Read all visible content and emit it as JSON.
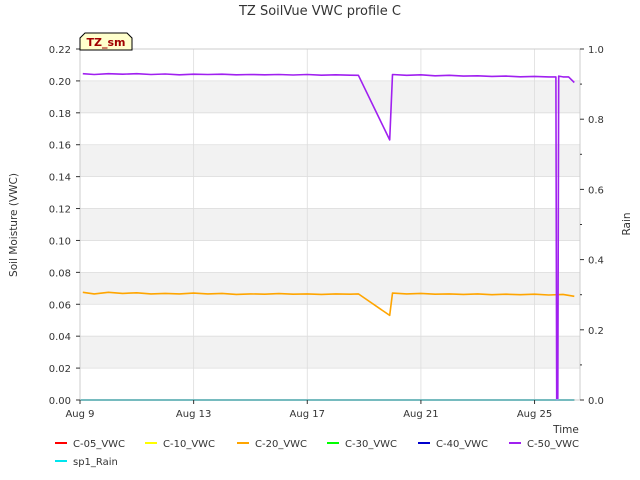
{
  "chart_data": {
    "type": "line",
    "title": "TZ SoilVue VWC profile C",
    "badge": "TZ_sm",
    "xlabel": "Time",
    "ylabel": "Soil Moisture (VWC)",
    "y2label": "Rain",
    "xlim": [
      9,
      26.6
    ],
    "ylim": [
      0.0,
      0.22
    ],
    "y2lim": [
      0.0,
      1.0
    ],
    "x_ticks": [
      {
        "v": 9,
        "label": "Aug 9"
      },
      {
        "v": 13,
        "label": "Aug 13"
      },
      {
        "v": 17,
        "label": "Aug 17"
      },
      {
        "v": 21,
        "label": "Aug 21"
      },
      {
        "v": 25,
        "label": "Aug 25"
      }
    ],
    "y_ticks": [
      {
        "v": 0.0,
        "label": "0.00"
      },
      {
        "v": 0.02,
        "label": "0.02"
      },
      {
        "v": 0.04,
        "label": "0.04"
      },
      {
        "v": 0.06,
        "label": "0.06"
      },
      {
        "v": 0.08,
        "label": "0.08"
      },
      {
        "v": 0.1,
        "label": "0.10"
      },
      {
        "v": 0.12,
        "label": "0.12"
      },
      {
        "v": 0.14,
        "label": "0.14"
      },
      {
        "v": 0.16,
        "label": "0.16"
      },
      {
        "v": 0.18,
        "label": "0.18"
      },
      {
        "v": 0.2,
        "label": "0.20"
      },
      {
        "v": 0.22,
        "label": "0.22"
      }
    ],
    "y2_ticks": [
      {
        "v": 0.0,
        "label": "0.0"
      },
      {
        "v": 0.2,
        "label": "0.2"
      },
      {
        "v": 0.4,
        "label": "0.4"
      },
      {
        "v": 0.6,
        "label": "0.6"
      },
      {
        "v": 0.8,
        "label": "0.8"
      },
      {
        "v": 1.0,
        "label": "1.0"
      }
    ],
    "series": [
      {
        "name": "C-05_VWC",
        "color": "#ff0000",
        "axis": "left",
        "points": [
          [
            9.0,
            0.0
          ],
          [
            26.4,
            0.0
          ]
        ]
      },
      {
        "name": "C-10_VWC",
        "color": "#ffff00",
        "axis": "left",
        "points": [
          [
            9.0,
            0.0
          ],
          [
            26.4,
            0.0
          ]
        ]
      },
      {
        "name": "C-20_VWC",
        "color": "#ffa500",
        "axis": "left",
        "points": [
          [
            9.1,
            0.0675
          ],
          [
            9.5,
            0.0665
          ],
          [
            10.0,
            0.0675
          ],
          [
            10.5,
            0.0668
          ],
          [
            11.0,
            0.0672
          ],
          [
            11.5,
            0.0665
          ],
          [
            12.0,
            0.0668
          ],
          [
            12.5,
            0.0665
          ],
          [
            13.0,
            0.067
          ],
          [
            13.5,
            0.0665
          ],
          [
            14.0,
            0.0668
          ],
          [
            14.5,
            0.0662
          ],
          [
            15.0,
            0.0665
          ],
          [
            15.5,
            0.0663
          ],
          [
            16.0,
            0.0667
          ],
          [
            16.5,
            0.0663
          ],
          [
            17.0,
            0.0665
          ],
          [
            17.5,
            0.0662
          ],
          [
            18.0,
            0.0665
          ],
          [
            18.5,
            0.0663
          ],
          [
            18.8,
            0.0665
          ],
          [
            19.9,
            0.053
          ],
          [
            20.0,
            0.067
          ],
          [
            20.5,
            0.0665
          ],
          [
            21.0,
            0.0668
          ],
          [
            21.5,
            0.0663
          ],
          [
            22.0,
            0.0665
          ],
          [
            22.5,
            0.0662
          ],
          [
            23.0,
            0.0665
          ],
          [
            23.5,
            0.066
          ],
          [
            24.0,
            0.0663
          ],
          [
            24.5,
            0.066
          ],
          [
            25.0,
            0.0663
          ],
          [
            25.5,
            0.0658
          ],
          [
            26.0,
            0.0662
          ],
          [
            26.4,
            0.065
          ]
        ]
      },
      {
        "name": "C-30_VWC",
        "color": "#00ff00",
        "axis": "left",
        "points": [
          [
            9.0,
            0.0
          ],
          [
            26.4,
            0.0
          ]
        ]
      },
      {
        "name": "C-40_VWC",
        "color": "#0000cd",
        "axis": "left",
        "points": [
          [
            9.0,
            0.0
          ],
          [
            26.4,
            0.0
          ]
        ]
      },
      {
        "name": "C-50_VWC",
        "color": "#a020f0",
        "axis": "left",
        "points": [
          [
            9.1,
            0.2045
          ],
          [
            9.5,
            0.204
          ],
          [
            10.0,
            0.2045
          ],
          [
            10.5,
            0.2042
          ],
          [
            11.0,
            0.2045
          ],
          [
            11.5,
            0.204
          ],
          [
            12.0,
            0.2043
          ],
          [
            12.5,
            0.2038
          ],
          [
            13.0,
            0.2042
          ],
          [
            13.5,
            0.204
          ],
          [
            14.0,
            0.2042
          ],
          [
            14.5,
            0.2038
          ],
          [
            15.0,
            0.204
          ],
          [
            15.5,
            0.2038
          ],
          [
            16.0,
            0.204
          ],
          [
            16.5,
            0.2037
          ],
          [
            17.0,
            0.204
          ],
          [
            17.5,
            0.2036
          ],
          [
            18.0,
            0.2038
          ],
          [
            18.5,
            0.2036
          ],
          [
            18.8,
            0.2035
          ],
          [
            19.9,
            0.163
          ],
          [
            20.0,
            0.204
          ],
          [
            20.5,
            0.2035
          ],
          [
            21.0,
            0.2038
          ],
          [
            21.5,
            0.2032
          ],
          [
            22.0,
            0.2035
          ],
          [
            22.5,
            0.203
          ],
          [
            23.0,
            0.2032
          ],
          [
            23.5,
            0.2028
          ],
          [
            24.0,
            0.203
          ],
          [
            24.5,
            0.2026
          ],
          [
            25.0,
            0.2028
          ],
          [
            25.5,
            0.2025
          ],
          [
            25.75,
            0.2025
          ],
          [
            25.78,
            0.0
          ],
          [
            25.82,
            0.0
          ],
          [
            25.85,
            0.203
          ],
          [
            26.0,
            0.2025
          ],
          [
            26.2,
            0.2025
          ],
          [
            26.4,
            0.199
          ]
        ]
      },
      {
        "name": "sp1_Rain",
        "color": "#00e5ee",
        "axis": "right",
        "points": [
          [
            9.0,
            0.0
          ],
          [
            26.4,
            0.0
          ]
        ]
      }
    ]
  }
}
